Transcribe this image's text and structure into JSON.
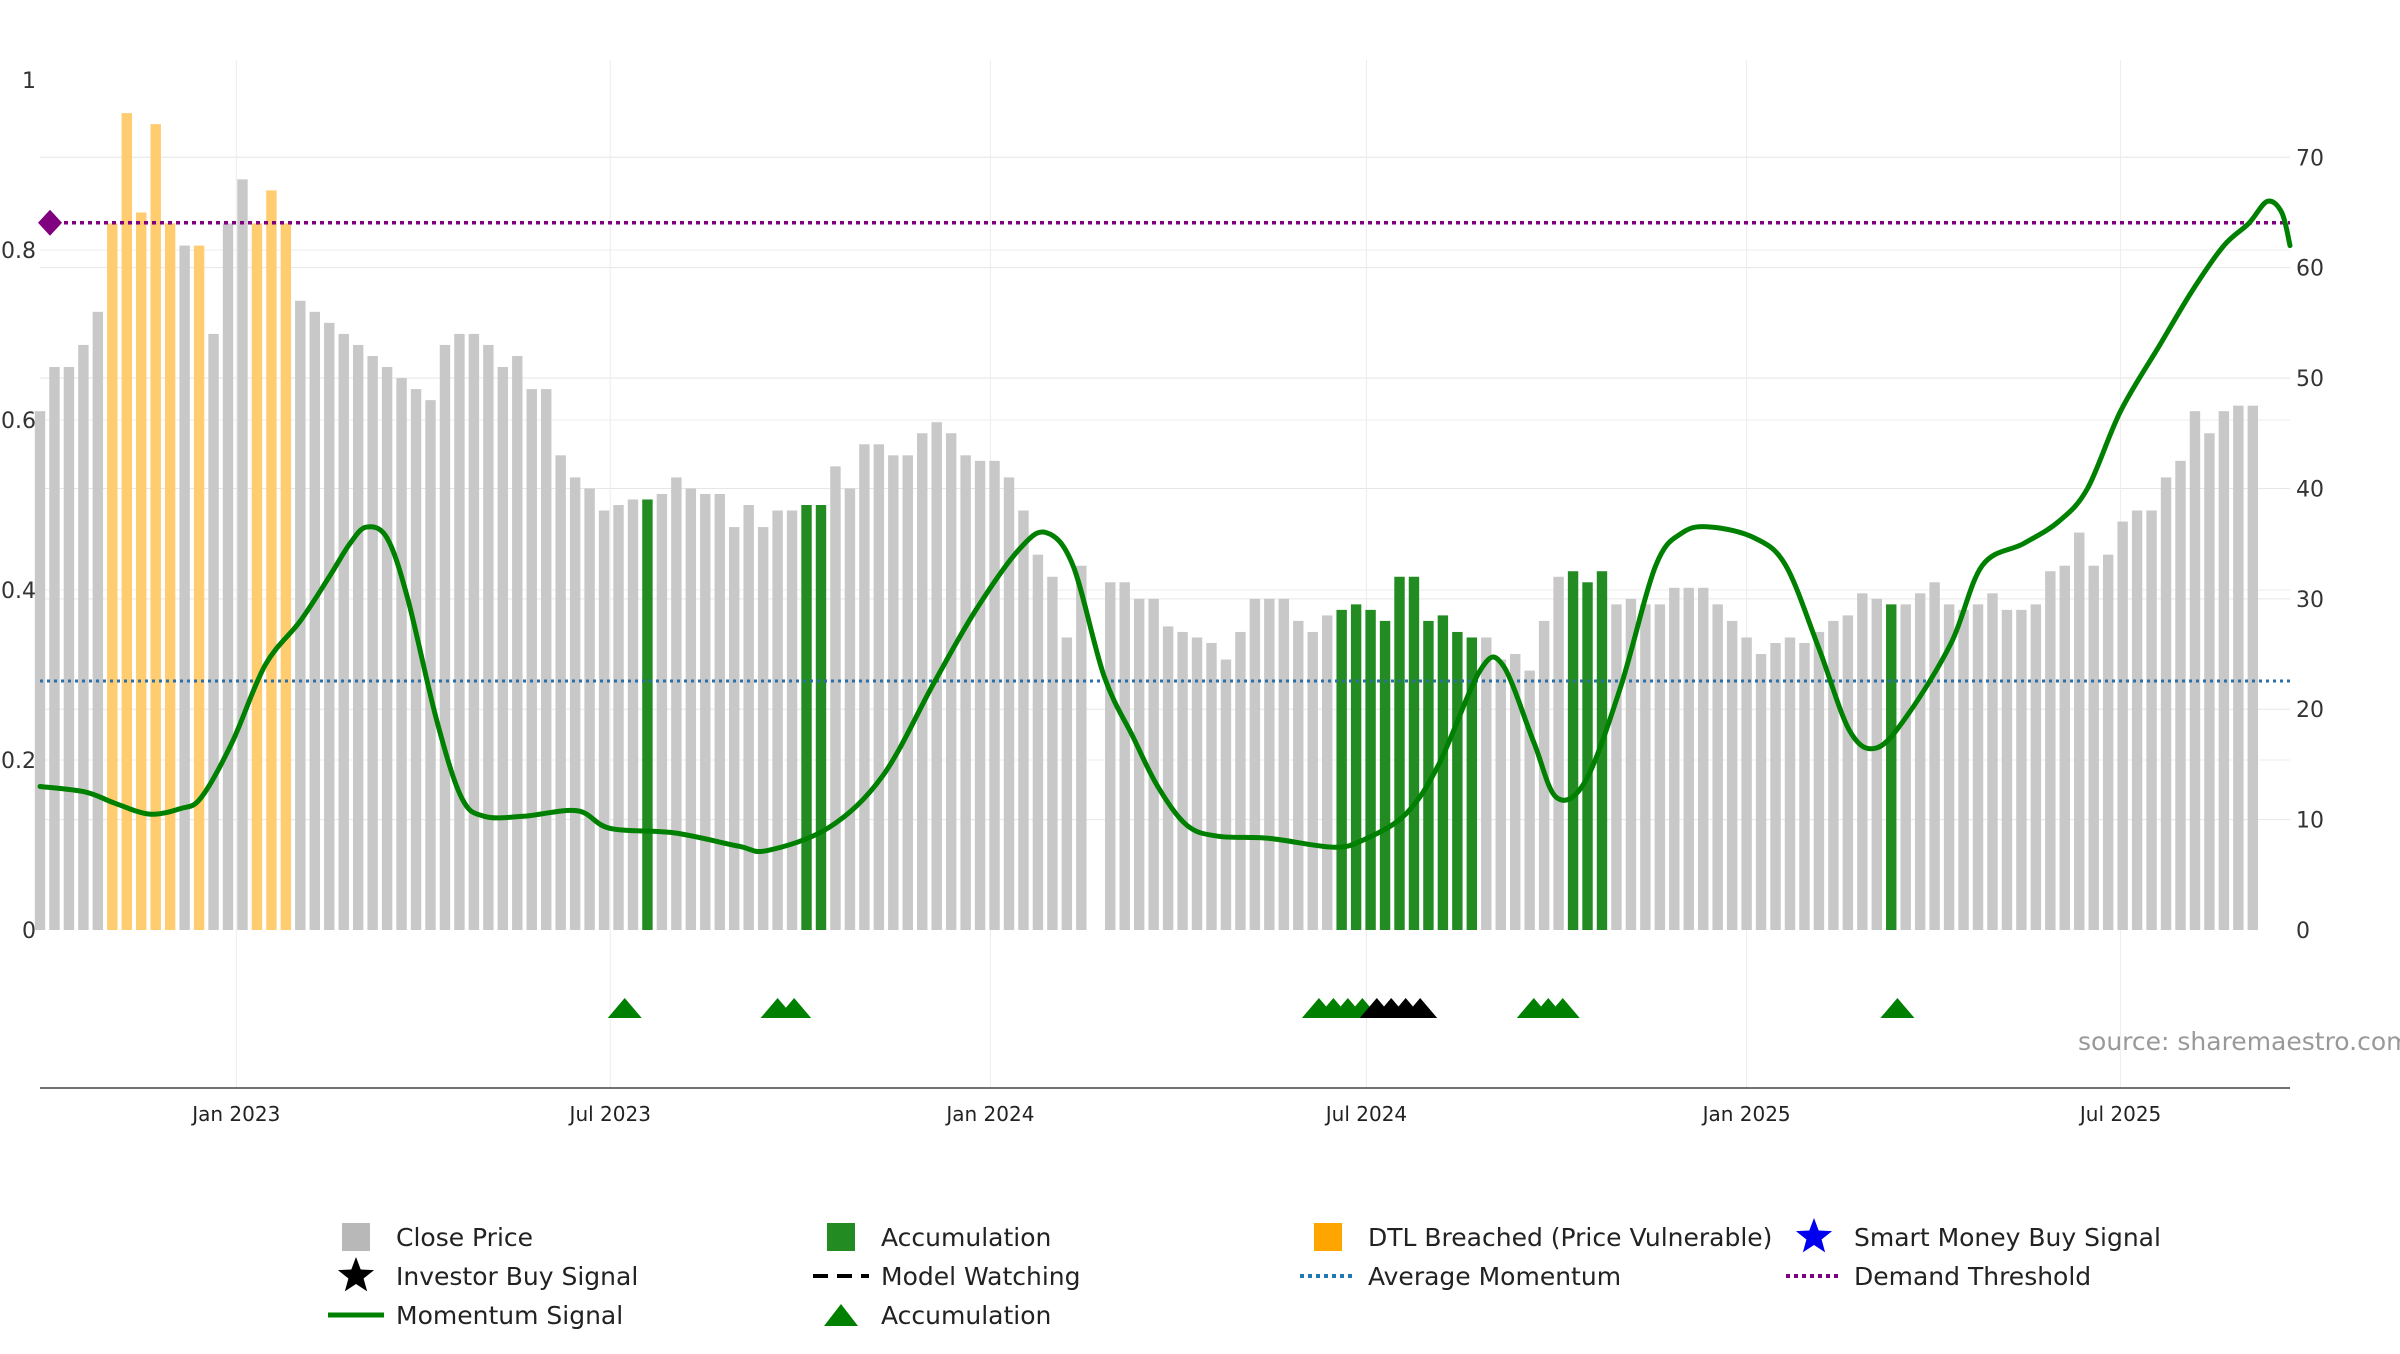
{
  "chart_data": {
    "type": "bar",
    "title": "",
    "source_text": "source: sharemaestro.com",
    "x_range": [
      "2022-09-28",
      "2025-09-21"
    ],
    "x_ticks": [
      {
        "date": "2023-01-01",
        "label": "Jan 2023"
      },
      {
        "date": "2023-07-01",
        "label": "Jul 2023"
      },
      {
        "date": "2024-01-01",
        "label": "Jan 2024"
      },
      {
        "date": "2024-07-01",
        "label": "Jul 2024"
      },
      {
        "date": "2025-01-01",
        "label": "Jan 2025"
      },
      {
        "date": "2025-07-01",
        "label": "Jul 2025"
      }
    ],
    "y_left": {
      "range": [
        0,
        1
      ],
      "ticks": [
        "0",
        "0.2",
        "0.4",
        "0.6",
        "0.8",
        "1"
      ]
    },
    "y_right": {
      "range": [
        0,
        77
      ],
      "ticks": [
        "0",
        "10",
        "20",
        "30",
        "40",
        "50",
        "60",
        "70"
      ]
    },
    "bar_start_date": "2022-09-28",
    "bar_interval_days": 7,
    "close_price": [
      47,
      51,
      51,
      53,
      56,
      64,
      74,
      65,
      73,
      64,
      62,
      62,
      54,
      64,
      68,
      64,
      67,
      64,
      57,
      56,
      55,
      54,
      53,
      52,
      51,
      50,
      49,
      48,
      53,
      54,
      54,
      53,
      51,
      52,
      49,
      49,
      43,
      41,
      40,
      38,
      38.5,
      39,
      39,
      39.5,
      41,
      40,
      39.5,
      39.5,
      36.5,
      38.5,
      36.5,
      38,
      38,
      38.5,
      38.5,
      42,
      40,
      44,
      44,
      43,
      43,
      45,
      46,
      45,
      43,
      42.5,
      42.5,
      41,
      38,
      34,
      32,
      26.5,
      33,
      null,
      31.5,
      31.5,
      30,
      30,
      27.5,
      27,
      26.5,
      26,
      24.5,
      27,
      30,
      30,
      30,
      28,
      27,
      28.5,
      29,
      29.5,
      29,
      28,
      32,
      32,
      28,
      28.5,
      27,
      26.5,
      26.5,
      24.5,
      25,
      23.5,
      28,
      32,
      32.5,
      31.5,
      32.5,
      29.5,
      30,
      29.5,
      29.5,
      31,
      31,
      31,
      29.5,
      28,
      26.5,
      25,
      26,
      26.5,
      26,
      27,
      28,
      28.5,
      30.5,
      30,
      29.5,
      29.5,
      30.5,
      31.5,
      29.5,
      29,
      29.5,
      30.5,
      29,
      29,
      29.5,
      32.5,
      33,
      36,
      33,
      34,
      37,
      38,
      38,
      41,
      42.5,
      47,
      45,
      47,
      47.5,
      47.5
    ],
    "bar_category_by_index": {
      "dtl_breached": [
        5,
        6,
        7,
        8,
        9,
        11,
        15,
        16,
        17
      ],
      "accumulation": [
        42,
        53,
        54,
        90,
        91,
        92,
        93,
        94,
        95,
        96,
        97,
        98,
        99,
        106,
        107,
        108,
        128
      ]
    },
    "momentum_signal": [
      {
        "date": "2022-09-28",
        "v": 13.0
      },
      {
        "date": "2022-10-20",
        "v": 12.5
      },
      {
        "date": "2022-11-03",
        "v": 11.5
      },
      {
        "date": "2022-11-20",
        "v": 10.5
      },
      {
        "date": "2022-12-05",
        "v": 11.0
      },
      {
        "date": "2022-12-15",
        "v": 12.0
      },
      {
        "date": "2022-12-30",
        "v": 17.0
      },
      {
        "date": "2023-01-15",
        "v": 24.0
      },
      {
        "date": "2023-02-01",
        "v": 28.0
      },
      {
        "date": "2023-02-15",
        "v": 32.0
      },
      {
        "date": "2023-02-25",
        "v": 35.0
      },
      {
        "date": "2023-03-05",
        "v": 36.5
      },
      {
        "date": "2023-03-15",
        "v": 35.5
      },
      {
        "date": "2023-03-25",
        "v": 30.0
      },
      {
        "date": "2023-04-08",
        "v": 19.0
      },
      {
        "date": "2023-04-20",
        "v": 12.0
      },
      {
        "date": "2023-05-01",
        "v": 10.3
      },
      {
        "date": "2023-05-20",
        "v": 10.3
      },
      {
        "date": "2023-06-15",
        "v": 10.8
      },
      {
        "date": "2023-07-01",
        "v": 9.2
      },
      {
        "date": "2023-08-01",
        "v": 8.8
      },
      {
        "date": "2023-09-01",
        "v": 7.6
      },
      {
        "date": "2023-09-15",
        "v": 7.2
      },
      {
        "date": "2023-10-15",
        "v": 9.3
      },
      {
        "date": "2023-11-10",
        "v": 14.0
      },
      {
        "date": "2023-12-05",
        "v": 22.5
      },
      {
        "date": "2023-12-25",
        "v": 29.0
      },
      {
        "date": "2024-01-15",
        "v": 34.5
      },
      {
        "date": "2024-01-28",
        "v": 36.0
      },
      {
        "date": "2024-02-10",
        "v": 33.0
      },
      {
        "date": "2024-02-25",
        "v": 23.0
      },
      {
        "date": "2024-03-10",
        "v": 17.5
      },
      {
        "date": "2024-03-22",
        "v": 13.0
      },
      {
        "date": "2024-04-05",
        "v": 9.5
      },
      {
        "date": "2024-04-20",
        "v": 8.5
      },
      {
        "date": "2024-05-15",
        "v": 8.3
      },
      {
        "date": "2024-06-15",
        "v": 7.5
      },
      {
        "date": "2024-06-30",
        "v": 8.2
      },
      {
        "date": "2024-07-20",
        "v": 10.5
      },
      {
        "date": "2024-08-05",
        "v": 15.0
      },
      {
        "date": "2024-08-25",
        "v": 23.5
      },
      {
        "date": "2024-09-05",
        "v": 24.0
      },
      {
        "date": "2024-09-20",
        "v": 17.0
      },
      {
        "date": "2024-10-01",
        "v": 12.0
      },
      {
        "date": "2024-10-15",
        "v": 13.5
      },
      {
        "date": "2024-11-01",
        "v": 22.0
      },
      {
        "date": "2024-11-18",
        "v": 33.0
      },
      {
        "date": "2024-12-01",
        "v": 36.0
      },
      {
        "date": "2024-12-15",
        "v": 36.5
      },
      {
        "date": "2025-01-05",
        "v": 35.5
      },
      {
        "date": "2025-01-20",
        "v": 33.0
      },
      {
        "date": "2025-02-05",
        "v": 25.5
      },
      {
        "date": "2025-02-20",
        "v": 18.0
      },
      {
        "date": "2025-03-05",
        "v": 16.5
      },
      {
        "date": "2025-03-20",
        "v": 19.5
      },
      {
        "date": "2025-04-10",
        "v": 26.0
      },
      {
        "date": "2025-04-25",
        "v": 33.0
      },
      {
        "date": "2025-05-15",
        "v": 35.0
      },
      {
        "date": "2025-06-01",
        "v": 37.0
      },
      {
        "date": "2025-06-15",
        "v": 40.0
      },
      {
        "date": "2025-07-01",
        "v": 47.0
      },
      {
        "date": "2025-07-20",
        "v": 53.0
      },
      {
        "date": "2025-08-05",
        "v": 58.0
      },
      {
        "date": "2025-08-20",
        "v": 62.0
      },
      {
        "date": "2025-09-01",
        "v": 64.0
      },
      {
        "date": "2025-09-10",
        "v": 66.0
      },
      {
        "date": "2025-09-17",
        "v": 65.0
      },
      {
        "date": "2025-09-21",
        "v": 62.0
      }
    ],
    "average_momentum": 0.293,
    "demand_threshold": 0.832,
    "accumulation_marker_dates": [
      "2023-07-08",
      "2023-09-20",
      "2023-09-28",
      "2024-06-08",
      "2024-06-15",
      "2024-06-22",
      "2024-06-29",
      "2024-09-20",
      "2024-09-27",
      "2024-10-04",
      "2025-03-15"
    ],
    "investor_buy_signal_dates": [
      "2024-07-06",
      "2024-07-13",
      "2024-07-20",
      "2024-07-27"
    ],
    "legend": [
      {
        "label": "Close Price",
        "symbol": "square",
        "color": "#b8b8b8"
      },
      {
        "label": "Accumulation",
        "symbol": "square",
        "color": "#228b22"
      },
      {
        "label": "DTL Breached (Price Vulnerable)",
        "symbol": "square",
        "color": "#ffa500"
      },
      {
        "label": "Smart Money Buy Signal",
        "symbol": "star",
        "color": "#0000ee"
      },
      {
        "label": "Investor Buy Signal",
        "symbol": "star",
        "color": "#000000"
      },
      {
        "label": "Model Watching",
        "symbol": "dash",
        "color": "#000000"
      },
      {
        "label": "Average Momentum",
        "symbol": "dotted",
        "color": "#1f77b4"
      },
      {
        "label": "Demand Threshold",
        "symbol": "dotted",
        "color": "#800080"
      },
      {
        "label": "Momentum Signal",
        "symbol": "line",
        "color": "#008000"
      },
      {
        "label": "Accumulation",
        "symbol": "triangle",
        "color": "#008000"
      }
    ],
    "colors": {
      "close_price": "#c8c8c8",
      "accumulation": "#228b22",
      "dtl_breached": "#ffcc70",
      "momentum": "#008000",
      "average_momentum": "#2a6fa8",
      "demand_threshold": "#800080",
      "marker_accumulation": "#008000",
      "marker_investor": "#000000"
    }
  }
}
